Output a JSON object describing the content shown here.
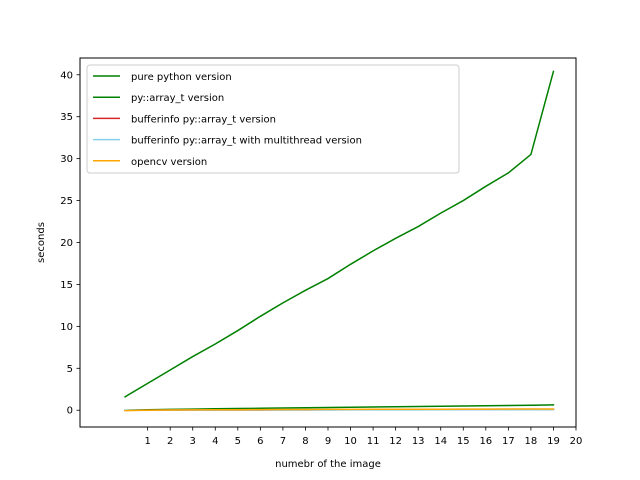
{
  "chart_data": {
    "type": "line",
    "title": "",
    "xlabel": "numebr of the image",
    "ylabel": "seconds",
    "xlim": [
      -2,
      20
    ],
    "ylim": [
      -2,
      42
    ],
    "xticks": [
      1,
      2,
      3,
      4,
      5,
      6,
      7,
      8,
      9,
      10,
      11,
      12,
      13,
      14,
      15,
      16,
      17,
      18,
      19,
      20
    ],
    "yticks": [
      0,
      5,
      10,
      15,
      20,
      25,
      30,
      35,
      40
    ],
    "grid": false,
    "legend_position": "top-left",
    "series": [
      {
        "name": "pure python version",
        "color": "#008000",
        "x": [
          0,
          1,
          2,
          3,
          4,
          5,
          6,
          7,
          8,
          9,
          10,
          11,
          12,
          13,
          14,
          15,
          16,
          17,
          18,
          19
        ],
        "y": [
          1.6,
          3.2,
          4.8,
          6.4,
          7.9,
          9.5,
          11.2,
          12.8,
          14.3,
          15.7,
          17.4,
          19.0,
          20.5,
          21.9,
          23.5,
          25.0,
          26.7,
          28.3,
          30.5,
          40.4
        ]
      },
      {
        "name": "py::array_t version",
        "color": "#008000",
        "x": [
          0,
          1,
          2,
          3,
          4,
          5,
          6,
          7,
          8,
          9,
          10,
          11,
          12,
          13,
          14,
          15,
          16,
          17,
          18,
          19
        ],
        "y": [
          0.0,
          0.06,
          0.1,
          0.13,
          0.17,
          0.2,
          0.23,
          0.27,
          0.3,
          0.33,
          0.36,
          0.39,
          0.42,
          0.45,
          0.48,
          0.51,
          0.54,
          0.57,
          0.6,
          0.63
        ]
      },
      {
        "name": "bufferinfo py::array_t version",
        "color": "#d62728",
        "x": [
          0,
          1,
          2,
          3,
          4,
          5,
          6,
          7,
          8,
          9,
          10,
          11,
          12,
          13,
          14,
          15,
          16,
          17,
          18,
          19
        ],
        "y": [
          0.0,
          0.01,
          0.01,
          0.02,
          0.02,
          0.03,
          0.03,
          0.04,
          0.04,
          0.05,
          0.05,
          0.06,
          0.06,
          0.07,
          0.07,
          0.08,
          0.08,
          0.09,
          0.09,
          0.1
        ]
      },
      {
        "name": "bufferinfo py::array_t with multithread version",
        "color": "#87ceeb",
        "x": [
          0,
          1,
          2,
          3,
          4,
          5,
          6,
          7,
          8,
          9,
          10,
          11,
          12,
          13,
          14,
          15,
          16,
          17,
          18,
          19
        ],
        "y": [
          0.0,
          0.005,
          0.01,
          0.01,
          0.015,
          0.02,
          0.02,
          0.025,
          0.03,
          0.03,
          0.035,
          0.04,
          0.04,
          0.045,
          0.05,
          0.05,
          0.055,
          0.06,
          0.06,
          0.065
        ]
      },
      {
        "name": "opencv version",
        "color": "#ffa500",
        "x": [
          0,
          1,
          2,
          3,
          4,
          5,
          6,
          7,
          8,
          9,
          10,
          11,
          12,
          13,
          14,
          15,
          16,
          17,
          18,
          19
        ],
        "y": [
          -0.05,
          0.0,
          0.02,
          0.04,
          0.05,
          0.06,
          0.07,
          0.08,
          0.09,
          0.1,
          0.1,
          0.11,
          0.11,
          0.12,
          0.12,
          0.13,
          0.13,
          0.14,
          0.14,
          0.15
        ]
      }
    ]
  }
}
